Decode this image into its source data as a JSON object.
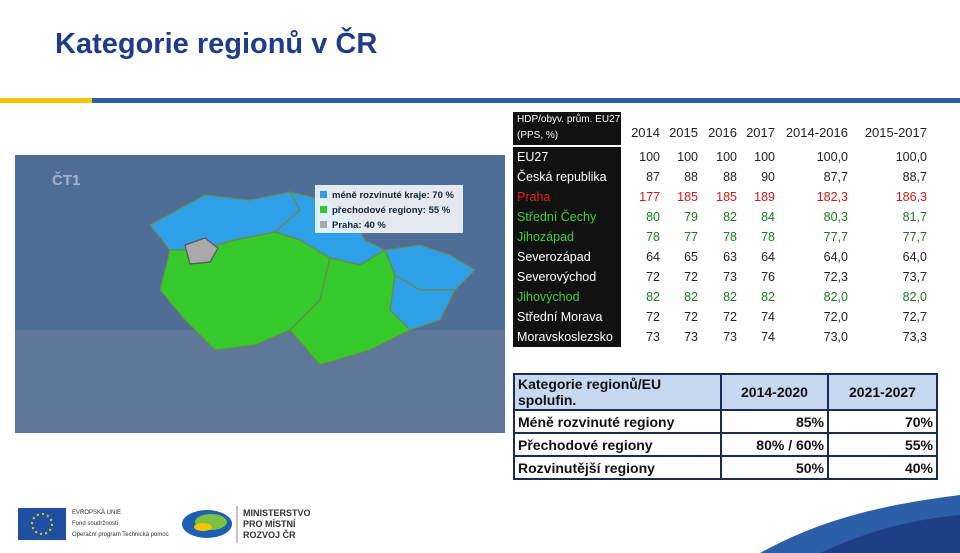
{
  "header": {
    "title": "Kategorie regionů v ČR"
  },
  "map": {
    "logo": "ČT1",
    "legend": [
      "méně rozvinuté kraje: 70 %",
      "přechodové regiony: 55 %",
      "Praha: 40 %"
    ]
  },
  "table1": {
    "header": [
      "HDP/obyv. prům. EU27 (PPS, %)",
      "2014",
      "2015",
      "2016",
      "2017",
      "2014-2016",
      "2015-2017"
    ],
    "rows": [
      [
        "EU27",
        "100",
        "100",
        "100",
        "100",
        "100,0",
        "100,0"
      ],
      [
        "Česká republika",
        "87",
        "88",
        "88",
        "90",
        "87,7",
        "88,7"
      ],
      [
        "Praha",
        "177",
        "185",
        "185",
        "189",
        "182,3",
        "186,3"
      ],
      [
        "Střední Čechy",
        "80",
        "79",
        "82",
        "84",
        "80,3",
        "81,7"
      ],
      [
        "Jihozápad",
        "78",
        "77",
        "78",
        "78",
        "77,7",
        "77,7"
      ],
      [
        "Severozápad",
        "64",
        "65",
        "63",
        "64",
        "64,0",
        "64,0"
      ],
      [
        "Severovýchod",
        "72",
        "72",
        "73",
        "76",
        "72,3",
        "73,7"
      ],
      [
        "Jihovýchod",
        "82",
        "82",
        "82",
        "82",
        "82,0",
        "82,0"
      ],
      [
        "Střední Morava",
        "72",
        "72",
        "72",
        "74",
        "72,0",
        "72,7"
      ],
      [
        "Moravskoslezsko",
        "73",
        "73",
        "73",
        "74",
        "73,0",
        "73,3"
      ]
    ]
  },
  "table2": {
    "header": [
      "Kategorie regionů/EU spolufin.",
      "2014-2020",
      "2021-2027"
    ],
    "rows": [
      [
        "Méně rozvinuté regiony",
        "85%",
        "70%"
      ],
      [
        "Přechodové regiony",
        "80% / 60%",
        "55%"
      ],
      [
        "Rozvinutější regiony",
        "50%",
        "40%"
      ]
    ]
  },
  "footer": {
    "eu": [
      "EVROPSKÁ UNIE",
      "Fond soudržnosti",
      "Operační program Technická pomoc"
    ],
    "ministry": [
      "MINISTERSTVO",
      "PRO MÍSTNÍ",
      "ROZVOJ ČR"
    ]
  }
}
